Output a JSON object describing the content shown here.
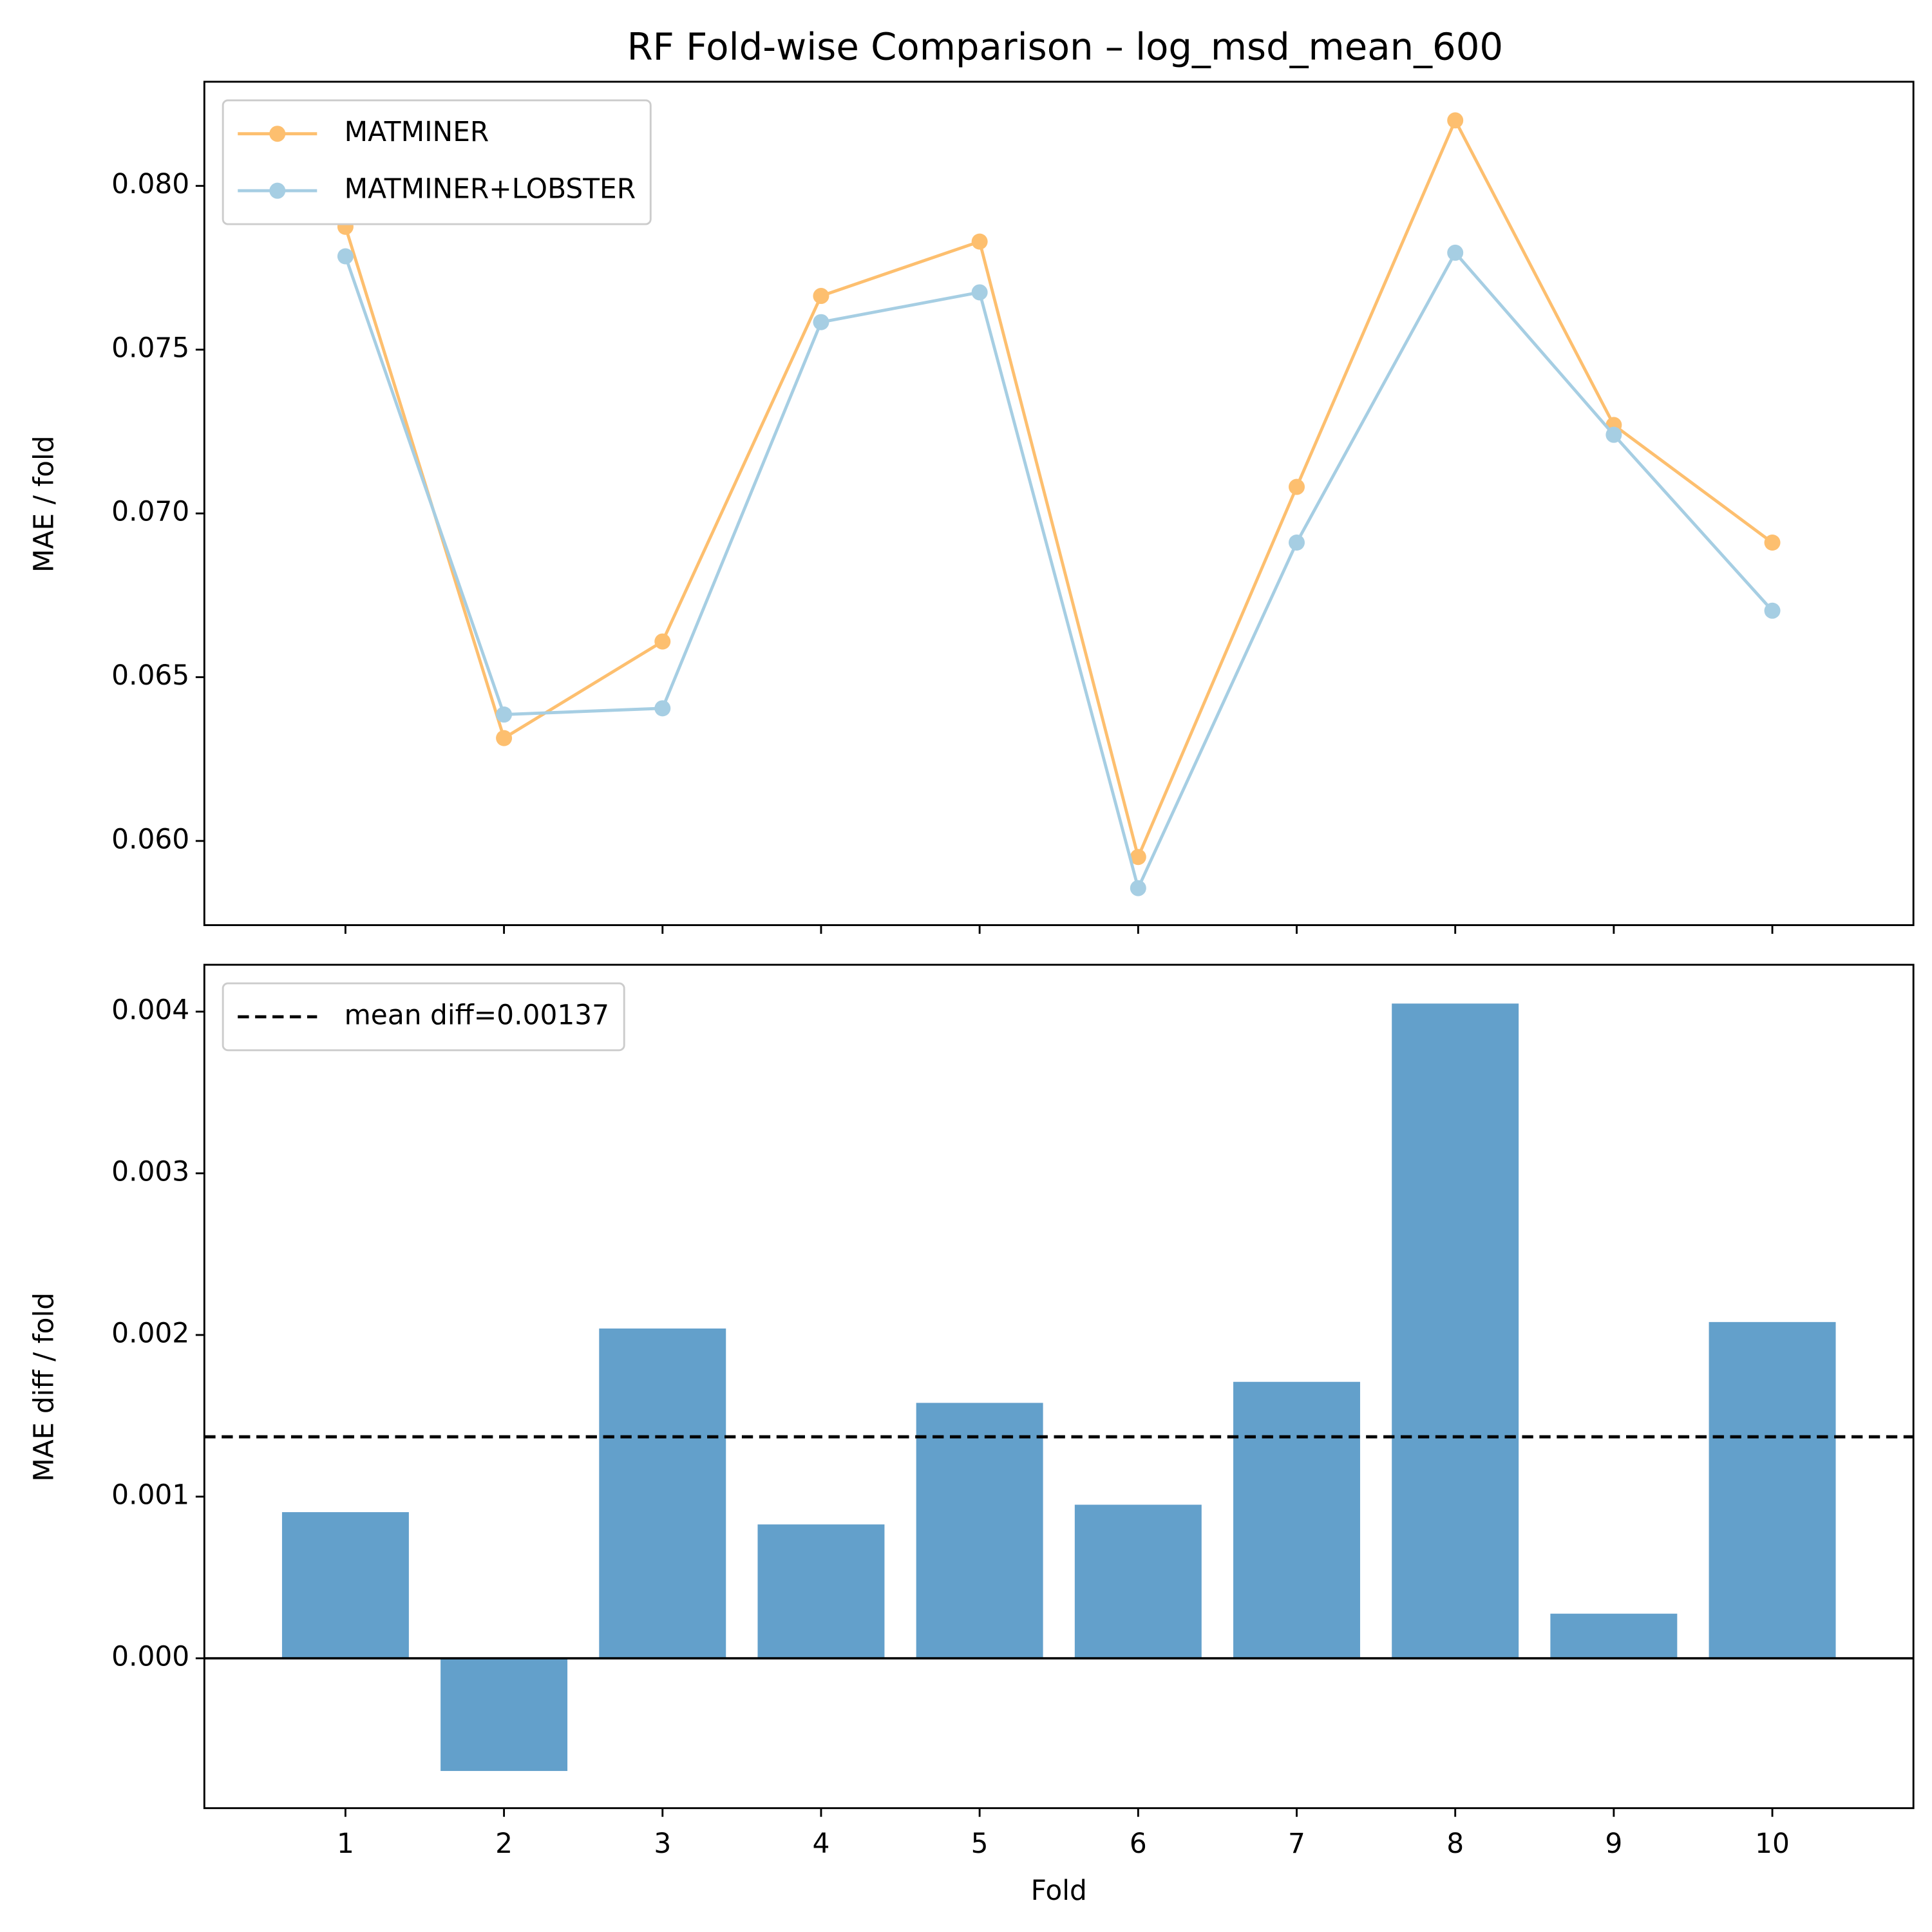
{
  "chart_data": [
    {
      "type": "line",
      "title": "RF Fold-wise Comparison – log_msd_mean_600",
      "y_label": "MAE / fold",
      "x": [
        1,
        2,
        3,
        4,
        5,
        6,
        7,
        8,
        9,
        10
      ],
      "series": [
        {
          "name": "MATMINER",
          "color": "#fdbf6f",
          "values": [
            0.07875,
            0.06314,
            0.06609,
            0.07664,
            0.0783,
            0.05951,
            0.07081,
            0.082,
            0.0727,
            0.06911
          ]
        },
        {
          "name": "MATMINER+LOBSTER",
          "color": "#a6cee3",
          "values": [
            0.07785,
            0.06386,
            0.06405,
            0.07584,
            0.07675,
            0.05856,
            0.06911,
            0.07796,
            0.0724,
            0.06703
          ]
        }
      ],
      "xlim": [
        0.11,
        10.89
      ],
      "xticks": [
        1,
        2,
        3,
        4,
        5,
        6,
        7,
        8,
        9,
        10
      ],
      "ylim": [
        0.05743,
        0.08318
      ],
      "yticks": [
        {
          "value": 0.06,
          "label": "0.060"
        },
        {
          "value": 0.065,
          "label": "0.065"
        },
        {
          "value": 0.07,
          "label": "0.070"
        },
        {
          "value": 0.075,
          "label": "0.075"
        },
        {
          "value": 0.08,
          "label": "0.080"
        }
      ],
      "legend": "upper left"
    },
    {
      "type": "bar",
      "x_label": "Fold",
      "y_label": "MAE diff / fold",
      "x": [
        1,
        2,
        3,
        4,
        5,
        6,
        7,
        8,
        9,
        10
      ],
      "values": [
        0.000904,
        -0.000697,
        0.00204,
        0.000828,
        0.00158,
        0.00095,
        0.00171,
        0.00405,
        0.000276,
        0.00208
      ],
      "color": "#63a0cb",
      "mean_line": {
        "value": 0.00137,
        "label": "mean diff=0.00137"
      },
      "zero_line": 0,
      "xlim": [
        0.11,
        10.89
      ],
      "xticks": [
        1,
        2,
        3,
        4,
        5,
        6,
        7,
        8,
        9,
        10
      ],
      "ylim": [
        -0.000927,
        0.00429
      ],
      "yticks": [
        {
          "value": 0,
          "label": "0.000"
        },
        {
          "value": 0.001,
          "label": "0.001"
        },
        {
          "value": 0.002,
          "label": "0.002"
        },
        {
          "value": 0.003,
          "label": "0.003"
        },
        {
          "value": 0.004,
          "label": "0.004"
        }
      ],
      "legend": "upper left"
    }
  ]
}
